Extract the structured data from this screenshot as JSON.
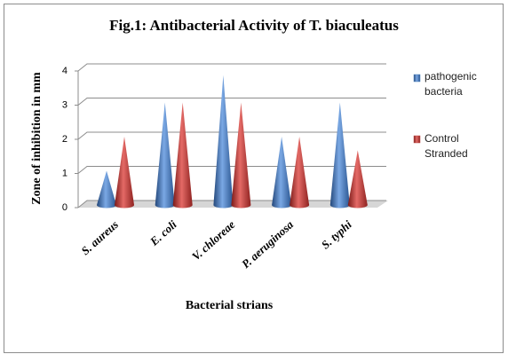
{
  "chart_data": {
    "type": "cone3d",
    "title": "Fig.1: Antibacterial Activity of T. biaculeatus",
    "x_label": "Bacterial strians",
    "y_label": "Zone of inhibition in mm",
    "categories": [
      "S. aureus",
      "E. coli",
      "V. chloreae",
      "P. aeruginosa",
      "S. typhi"
    ],
    "series": [
      {
        "name": "pathogenic bacteria",
        "color": "#4f81bd",
        "values": [
          1,
          3,
          3.8,
          2,
          3
        ]
      },
      {
        "name": "Control Stranded",
        "color": "#c0504d",
        "values": [
          2,
          3,
          3,
          2,
          1.6
        ]
      }
    ],
    "ylim": [
      0,
      4
    ],
    "yticks": [
      0,
      1,
      2,
      3,
      4
    ],
    "grid": true,
    "legend": "right"
  }
}
